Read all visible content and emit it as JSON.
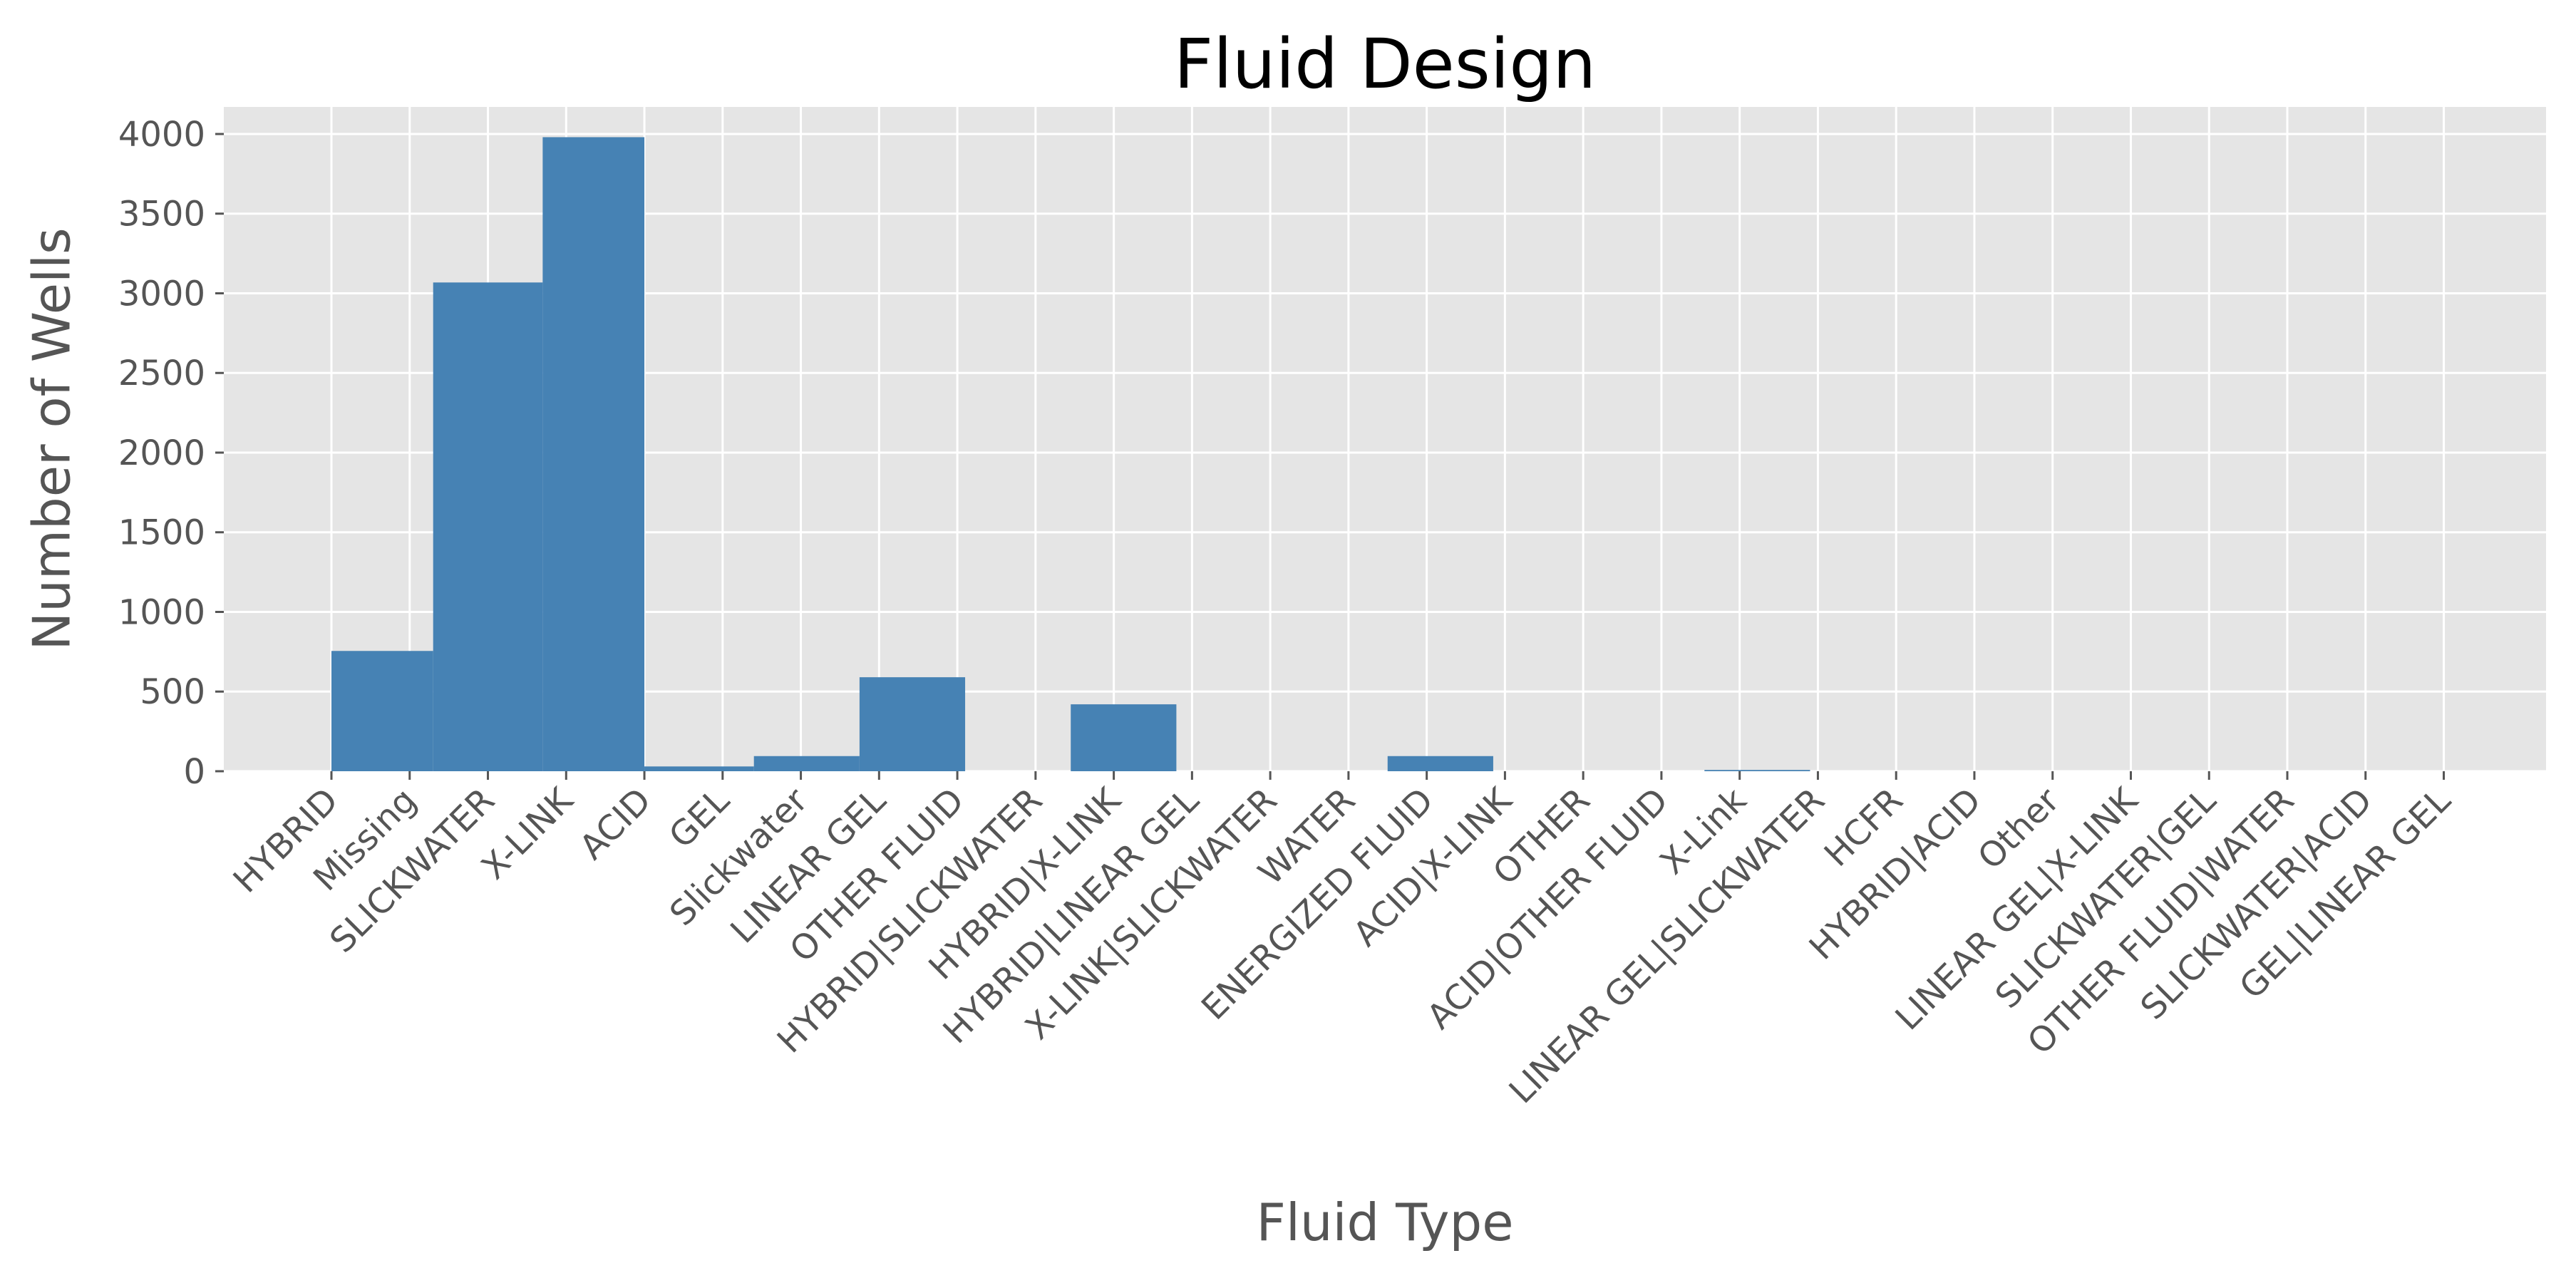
{
  "chart_data": {
    "type": "bar",
    "title": "Fluid Design",
    "xlabel": "Fluid Type",
    "ylabel": "Number of Wells",
    "categories": [
      "HYBRID",
      "Missing",
      "SLICKWATER",
      "X-LINK",
      "ACID",
      "GEL",
      "Slickwater",
      "LINEAR GEL",
      "OTHER FLUID",
      "HYBRID|SLICKWATER",
      "HYBRID|X-LINK",
      "HYBRID|LINEAR GEL",
      "X-LINK|SLICKWATER",
      "WATER",
      "ENERGIZED FLUID",
      "ACID|X-LINK",
      "OTHER",
      "ACID|OTHER FLUID",
      "X-Link",
      "LINEAR GEL|SLICKWATER",
      "HCFR",
      "HYBRID|ACID",
      "Other",
      "LINEAR GEL|X-LINK",
      "SLICKWATER|GEL",
      "OTHER FLUID|WATER",
      "SLICKWATER|ACID",
      "GEL|LINEAR GEL"
    ],
    "bins": [
      {
        "start": 0,
        "end": 1.3,
        "value": 755
      },
      {
        "start": 1.3,
        "end": 2.7,
        "value": 3068
      },
      {
        "start": 2.7,
        "end": 4.0,
        "value": 3980
      },
      {
        "start": 4.0,
        "end": 5.4,
        "value": 30
      },
      {
        "start": 5.4,
        "end": 6.75,
        "value": 95
      },
      {
        "start": 6.75,
        "end": 8.1,
        "value": 590
      },
      {
        "start": 8.1,
        "end": 9.45,
        "value": 0
      },
      {
        "start": 9.45,
        "end": 10.8,
        "value": 420
      },
      {
        "start": 10.8,
        "end": 12.15,
        "value": 0
      },
      {
        "start": 12.15,
        "end": 13.5,
        "value": 0
      },
      {
        "start": 13.5,
        "end": 14.85,
        "value": 95
      },
      {
        "start": 14.85,
        "end": 16.2,
        "value": 0
      },
      {
        "start": 16.2,
        "end": 17.55,
        "value": 0
      },
      {
        "start": 17.55,
        "end": 18.9,
        "value": 8
      },
      {
        "start": 18.9,
        "end": 20.25,
        "value": 0
      },
      {
        "start": 20.25,
        "end": 21.6,
        "value": 0
      },
      {
        "start": 21.6,
        "end": 22.95,
        "value": 0
      },
      {
        "start": 22.95,
        "end": 24.3,
        "value": 0
      },
      {
        "start": 24.3,
        "end": 25.65,
        "value": 0
      },
      {
        "start": 25.65,
        "end": 27.0,
        "value": 0
      }
    ],
    "ylim": [
      0,
      4170
    ],
    "yticks": [
      0,
      500,
      1000,
      1500,
      2000,
      2500,
      3000,
      3500,
      4000
    ],
    "grid": true,
    "colors": {
      "bar": "#4682b4",
      "panel": "#e5e5e5",
      "grid": "#ffffff",
      "tick_text": "#555555",
      "title_text": "#000000"
    }
  }
}
